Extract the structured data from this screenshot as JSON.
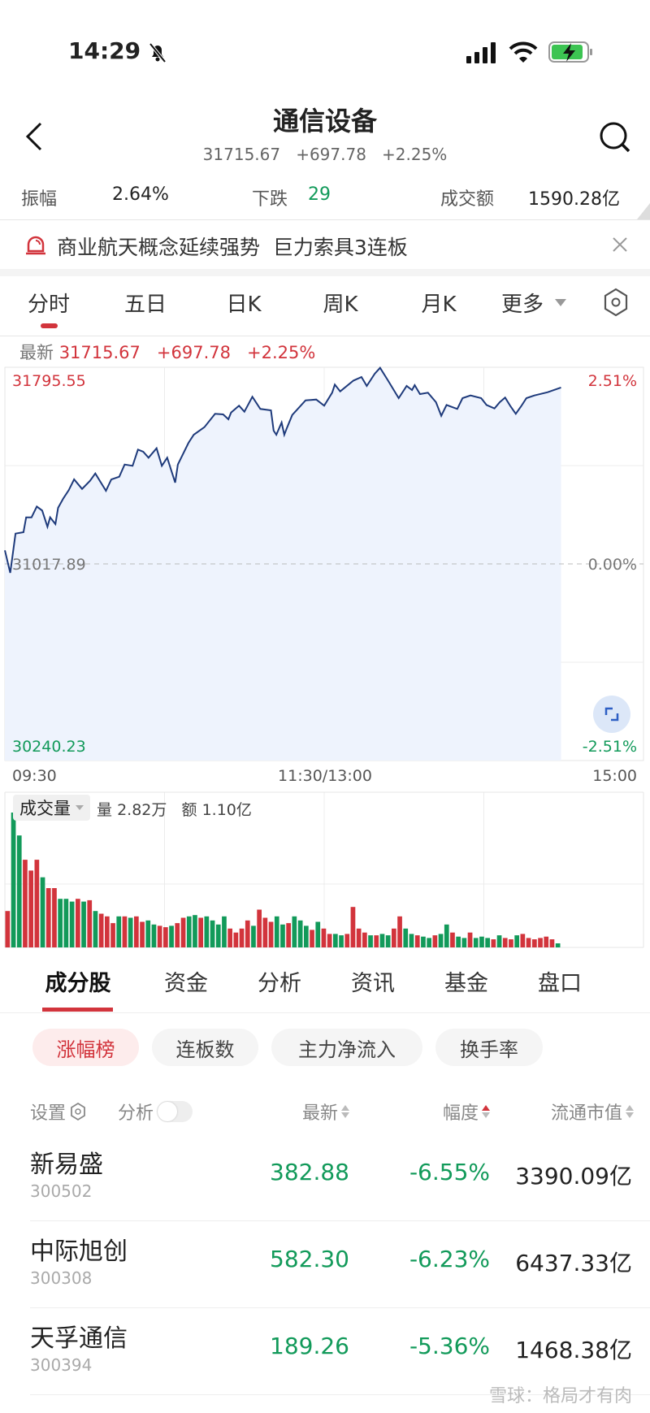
{
  "status_bar": {
    "time": "14:29",
    "icons": [
      "bell-slash-icon",
      "signal-icon",
      "wifi-icon",
      "battery-charging-icon"
    ]
  },
  "header": {
    "title": "通信设备",
    "price": "31715.67",
    "change": "+697.78",
    "change_pct": "+2.25%"
  },
  "stats": {
    "amplitude_label": "振幅",
    "amplitude": "2.64%",
    "down_label": "下跌",
    "down": "29",
    "turnover_label": "成交额",
    "turnover": "1590.28亿"
  },
  "banner": {
    "text": "商业航天概念延续强势  巨力索具3连板"
  },
  "chart_tabs": [
    {
      "label": "分时"
    },
    {
      "label": "五日"
    },
    {
      "label": "日K"
    },
    {
      "label": "周K"
    },
    {
      "label": "月K"
    },
    {
      "label": "更多"
    }
  ],
  "latest": {
    "label": "最新",
    "price": "31715.67",
    "change": "+697.78",
    "pct": "+2.25%"
  },
  "volume": {
    "label": "成交量",
    "qty_label": "量",
    "qty": "2.82万",
    "amt_label": "额",
    "amt": "1.10亿"
  },
  "colors": {
    "up": "#d2343c",
    "down": "#129a5a",
    "line": "#1e3a7b",
    "fill": "#eef3fd"
  },
  "chart_data": {
    "type": "line",
    "y_top_label": "31795.55",
    "y_mid_label": "31017.89",
    "y_bottom_label": "30240.23",
    "pct_top_label": "2.51%",
    "pct_mid_label": "0.00%",
    "pct_bottom_label": "-2.51%",
    "ylim": [
      30240.23,
      31795.55
    ],
    "base": 31017.89,
    "x_ticks": [
      "09:30",
      "11:30/13:00",
      "15:00"
    ],
    "grid": true,
    "points": [
      [
        "09:30",
        31071.4
      ],
      [
        "09:32",
        30982.5
      ],
      [
        "09:34",
        31137.8
      ],
      [
        "09:37",
        31143.2
      ],
      [
        "09:38",
        31202.1
      ],
      [
        "09:40",
        31202.1
      ],
      [
        "09:42",
        31244.9
      ],
      [
        "09:44",
        31228.9
      ],
      [
        "09:46",
        31164.6
      ],
      [
        "09:47",
        31202.1
      ],
      [
        "09:49",
        31175.3
      ],
      [
        "09:50",
        31239.6
      ],
      [
        "09:52",
        31277.1
      ],
      [
        "09:54",
        31309.2
      ],
      [
        "09:56",
        31352.1
      ],
      [
        "09:59",
        31314.6
      ],
      [
        "10:02",
        31346.7
      ],
      [
        "10:04",
        31375.6
      ],
      [
        "10:08",
        31307.1
      ],
      [
        "10:10",
        31352.1
      ],
      [
        "10:13",
        31362.8
      ],
      [
        "10:15",
        31411.0
      ],
      [
        "10:18",
        31405.6
      ],
      [
        "10:20",
        31469.9
      ],
      [
        "10:22",
        31461.3
      ],
      [
        "10:24",
        31437.8
      ],
      [
        "10:27",
        31475.2
      ],
      [
        "10:29",
        31405.6
      ],
      [
        "10:31",
        31437.8
      ],
      [
        "10:34",
        31339.2
      ],
      [
        "10:35",
        31411.0
      ],
      [
        "10:39",
        31496.7
      ],
      [
        "10:41",
        31528.8
      ],
      [
        "10:45",
        31558.8
      ],
      [
        "10:49",
        31611.3
      ],
      [
        "10:52",
        31609.1
      ],
      [
        "10:54",
        31589.9
      ],
      [
        "10:55",
        31616.6
      ],
      [
        "10:58",
        31643.4
      ],
      [
        "11:00",
        31619.9
      ],
      [
        "11:03",
        31678.8
      ],
      [
        "11:06",
        31630.6
      ],
      [
        "11:10",
        31625.2
      ],
      [
        "11:11",
        31544.9
      ],
      [
        "11:12",
        31528.8
      ],
      [
        "11:14",
        31577.0
      ],
      [
        "11:15",
        31528.8
      ],
      [
        "11:16",
        31555.6
      ],
      [
        "11:18",
        31607.0
      ],
      [
        "11:23",
        31664.9
      ],
      [
        "11:27",
        31668.1
      ],
      [
        "11:30",
        31643.4
      ],
      [
        "13:03",
        31694.9
      ],
      [
        "13:04",
        31727.0
      ],
      [
        "13:06",
        31700.2
      ],
      [
        "13:11",
        31743.0
      ],
      [
        "13:14",
        31757.0
      ],
      [
        "13:16",
        31721.6
      ],
      [
        "13:19",
        31769.8
      ],
      [
        "13:21",
        31793.4
      ],
      [
        "13:24",
        31743.0
      ],
      [
        "13:28",
        31673.4
      ],
      [
        "13:31",
        31721.6
      ],
      [
        "13:33",
        31705.6
      ],
      [
        "13:34",
        31724.8
      ],
      [
        "13:36",
        31689.5
      ],
      [
        "13:39",
        31694.9
      ],
      [
        "13:42",
        31657.4
      ],
      [
        "13:44",
        31603.8
      ],
      [
        "13:46",
        31646.6
      ],
      [
        "13:50",
        31630.6
      ],
      [
        "13:52",
        31673.4
      ],
      [
        "13:55",
        31684.1
      ],
      [
        "13:59",
        31673.4
      ],
      [
        "14:01",
        31646.6
      ],
      [
        "14:04",
        31632.7
      ],
      [
        "14:06",
        31657.4
      ],
      [
        "14:08",
        31675.6
      ],
      [
        "14:10",
        31641.3
      ],
      [
        "14:12",
        31611.3
      ],
      [
        "14:14",
        31641.3
      ],
      [
        "14:16",
        31673.4
      ],
      [
        "14:19",
        31684.1
      ],
      [
        "14:24",
        31697.0
      ],
      [
        "14:29",
        31715.67
      ]
    ],
    "volume_relative": [
      [
        27,
        "r"
      ],
      [
        100,
        "g"
      ],
      [
        83,
        "g"
      ],
      [
        65,
        "r"
      ],
      [
        57,
        "r"
      ],
      [
        65,
        "r"
      ],
      [
        52,
        "g"
      ],
      [
        44,
        "r"
      ],
      [
        44,
        "r"
      ],
      [
        36,
        "g"
      ],
      [
        36,
        "g"
      ],
      [
        34,
        "g"
      ],
      [
        36,
        "r"
      ],
      [
        34,
        "g"
      ],
      [
        35,
        "r"
      ],
      [
        27,
        "g"
      ],
      [
        25,
        "r"
      ],
      [
        23,
        "r"
      ],
      [
        18,
        "r"
      ],
      [
        23,
        "g"
      ],
      [
        23,
        "r"
      ],
      [
        22,
        "g"
      ],
      [
        23,
        "r"
      ],
      [
        19,
        "r"
      ],
      [
        20,
        "g"
      ],
      [
        17,
        "g"
      ],
      [
        16,
        "r"
      ],
      [
        15,
        "r"
      ],
      [
        16,
        "g"
      ],
      [
        18,
        "r"
      ],
      [
        22,
        "r"
      ],
      [
        23,
        "g"
      ],
      [
        24,
        "g"
      ],
      [
        22,
        "r"
      ],
      [
        23,
        "g"
      ],
      [
        20,
        "g"
      ],
      [
        17,
        "g"
      ],
      [
        23,
        "g"
      ],
      [
        14,
        "r"
      ],
      [
        11,
        "r"
      ],
      [
        14,
        "r"
      ],
      [
        20,
        "r"
      ],
      [
        16,
        "g"
      ],
      [
        28,
        "r"
      ],
      [
        22,
        "r"
      ],
      [
        19,
        "r"
      ],
      [
        23,
        "g"
      ],
      [
        17,
        "g"
      ],
      [
        18,
        "r"
      ],
      [
        23,
        "g"
      ],
      [
        20,
        "g"
      ],
      [
        16,
        "g"
      ],
      [
        13,
        "r"
      ],
      [
        19,
        "g"
      ],
      [
        14,
        "r"
      ],
      [
        10,
        "r"
      ],
      [
        10,
        "g"
      ],
      [
        9,
        "g"
      ],
      [
        10,
        "r"
      ],
      [
        30,
        "r"
      ],
      [
        14,
        "r"
      ],
      [
        11,
        "r"
      ],
      [
        9,
        "g"
      ],
      [
        9,
        "r"
      ],
      [
        10,
        "g"
      ],
      [
        9,
        "g"
      ],
      [
        14,
        "r"
      ],
      [
        23,
        "r"
      ],
      [
        14,
        "g"
      ],
      [
        10,
        "g"
      ],
      [
        9,
        "r"
      ],
      [
        8,
        "g"
      ],
      [
        7,
        "g"
      ],
      [
        9,
        "r"
      ],
      [
        10,
        "g"
      ],
      [
        17,
        "g"
      ],
      [
        11,
        "r"
      ],
      [
        8,
        "g"
      ],
      [
        7,
        "g"
      ],
      [
        11,
        "r"
      ],
      [
        7,
        "g"
      ],
      [
        8,
        "g"
      ],
      [
        7,
        "g"
      ],
      [
        6,
        "r"
      ],
      [
        9,
        "g"
      ],
      [
        7,
        "r"
      ],
      [
        6,
        "r"
      ],
      [
        9,
        "g"
      ],
      [
        10,
        "r"
      ],
      [
        7,
        "r"
      ],
      [
        6,
        "r"
      ],
      [
        7,
        "r"
      ],
      [
        8,
        "r"
      ],
      [
        6,
        "r"
      ],
      [
        3,
        "g"
      ]
    ]
  },
  "section_tabs": [
    {
      "label": "成分股"
    },
    {
      "label": "资金"
    },
    {
      "label": "分析"
    },
    {
      "label": "资讯"
    },
    {
      "label": "基金"
    },
    {
      "label": "盘口"
    }
  ],
  "filters": [
    {
      "label": "涨幅榜"
    },
    {
      "label": "连板数"
    },
    {
      "label": "主力净流入"
    },
    {
      "label": "换手率"
    }
  ],
  "table": {
    "settings_label": "设置",
    "analysis_label": "分析",
    "analysis_toggle": false,
    "columns": [
      "最新",
      "幅度",
      "流通市值"
    ],
    "rows": [
      {
        "name": "新易盛",
        "code": "300502",
        "price": "382.88",
        "pct": "-6.55%",
        "mcap": "3390.09亿"
      },
      {
        "name": "中际旭创",
        "code": "300308",
        "price": "582.30",
        "pct": "-6.23%",
        "mcap": "6437.33亿"
      },
      {
        "name": "天孚通信",
        "code": "300394",
        "price": "189.26",
        "pct": "-5.36%",
        "mcap": "1468.38亿"
      }
    ]
  },
  "watermark": "雪球：格局才有肉"
}
